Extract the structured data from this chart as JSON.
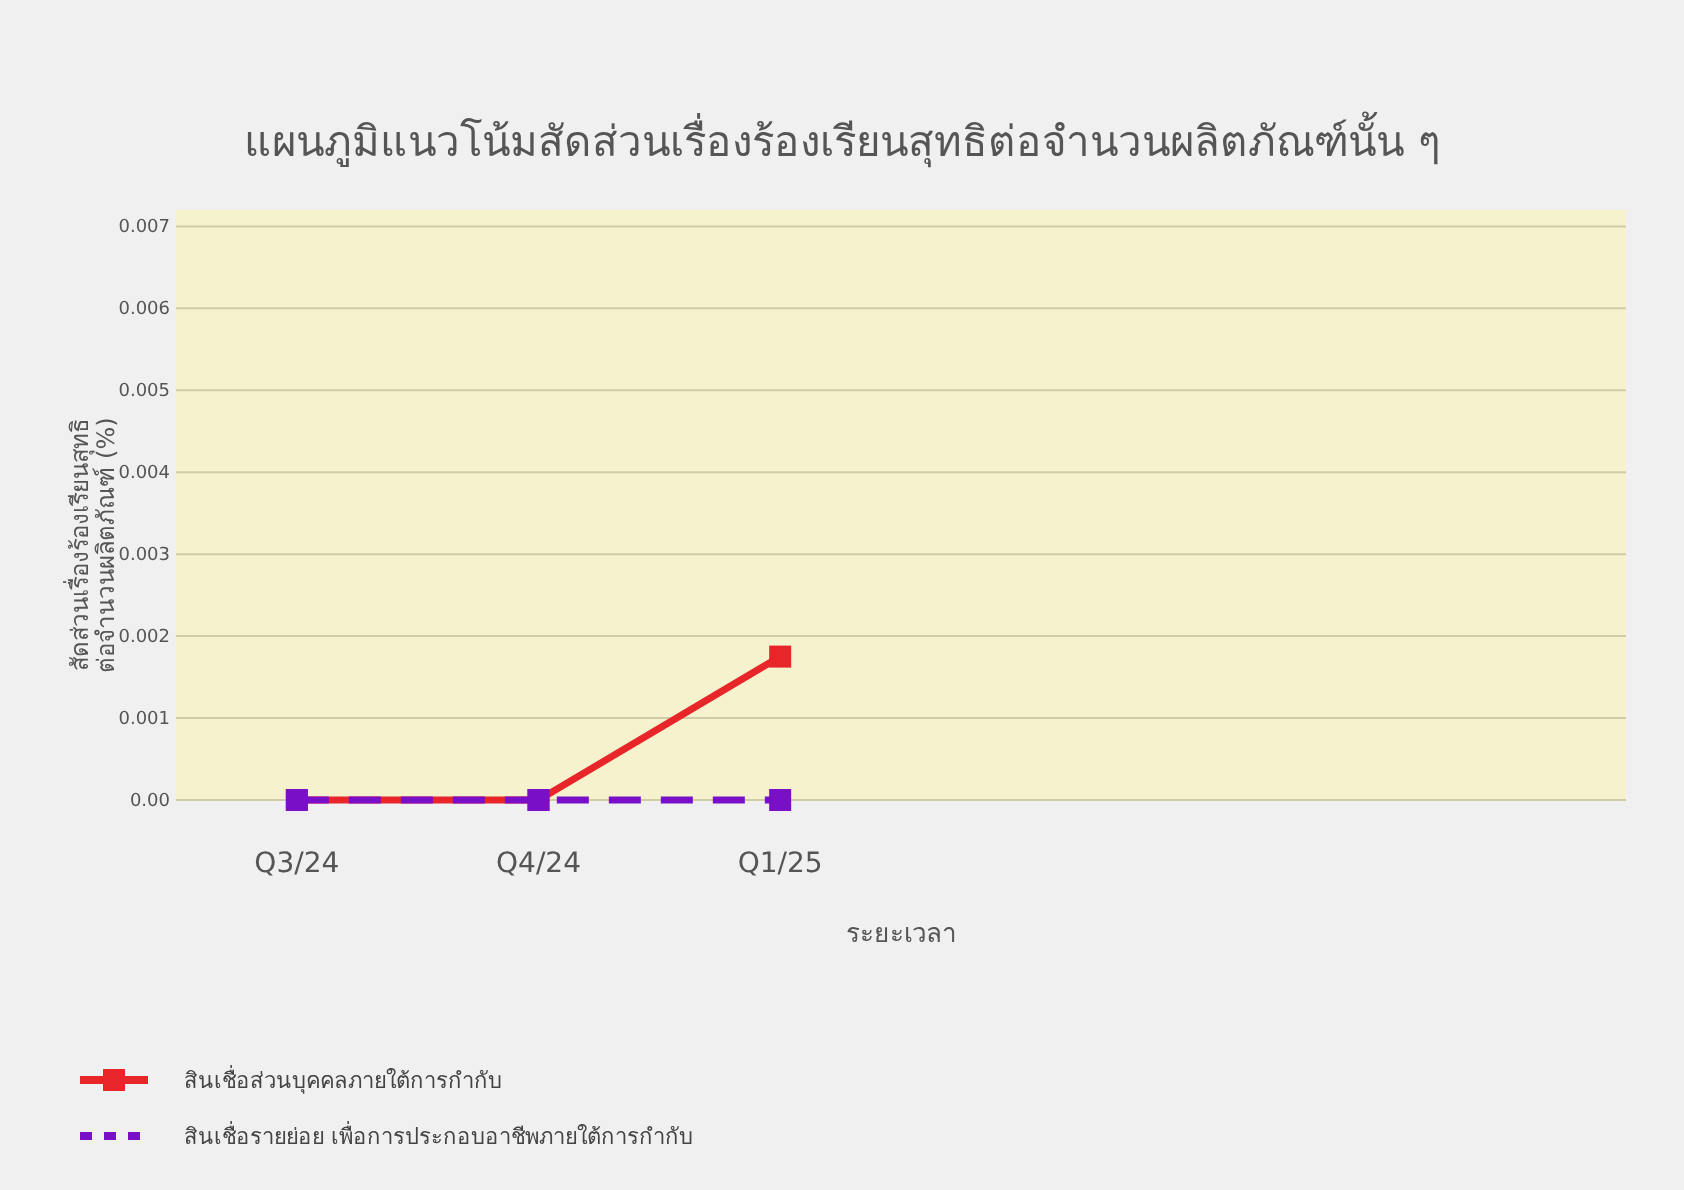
{
  "chart_data": {
    "type": "line",
    "title": "แผนภูมิแนวโน้มสัดส่วนเรื่องร้องเรียนสุทธิต่อจำนวนผลิตภัณฑ์นั้น ๆ",
    "xlabel": "ระยะเวลา",
    "ylabel": "สัดส่วนเรื่องร้องเรียนสุทธิ ต่อจำนวนผลิตภัณฑ์ (%)",
    "categories": [
      "Q3/24",
      "Q4/24",
      "Q1/25",
      null,
      null,
      null
    ],
    "series": [
      {
        "name": "สินเชื่อส่วนบุคคลภายใต้การกำกับ",
        "color": "#e8262a",
        "line_style": "solid",
        "values": [
          0,
          0,
          0.00175,
          null,
          null,
          null
        ]
      },
      {
        "name": "สินเชื่อรายย่อย เพื่อการประกอบอาชีพภายใต้การกำกับ",
        "color": "#7a0fc8",
        "line_style": "dashed",
        "values": [
          0,
          0,
          0,
          null,
          null,
          null
        ]
      }
    ],
    "ylim": [
      0,
      0.0072
    ],
    "yticks": [
      {
        "value": 0,
        "label": "0.00"
      },
      0.001,
      0.002,
      0.003,
      0.004,
      0.005,
      0.006,
      0.007
    ],
    "grid": "y",
    "legend": "bottom left",
    "marker": "square"
  }
}
